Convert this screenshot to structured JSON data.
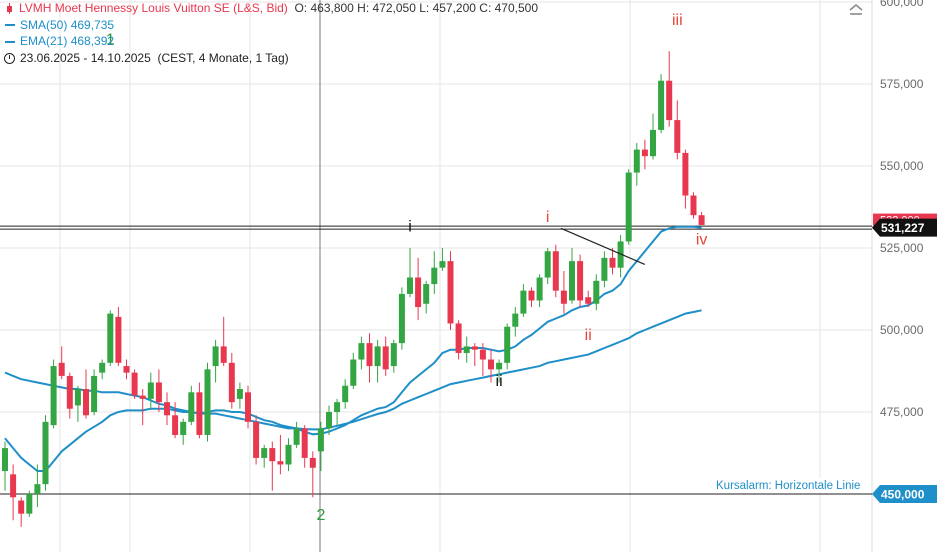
{
  "legend": {
    "title": "LVMH Moet Hennessy Louis Vuitton SE (L&S, Bid)",
    "ohlc": "O: 463,800  H: 472,050  L: 457,200  C: 470,500",
    "sma_label": "SMA(50)",
    "sma_value": "469,735",
    "ema_label": "EMA(21)",
    "ema_value": "468,392",
    "period": "23.06.2025 - 14.10.2025",
    "period_detail": "(CEST, 4 Monate, 1 Tag)"
  },
  "price_tags": {
    "current": "531,227",
    "hidden_behind": "533,000",
    "alarm": "450,000"
  },
  "alarm_label": "Kursalarm: Horizontale Linie",
  "colors": {
    "up": "#33a542",
    "down": "#e8384f",
    "ma": "#1e8fc8",
    "wave_green": "#2e9a3a",
    "wave_red": "#e5473a",
    "wave_black": "#111111",
    "axis_text": "#6b6b6b"
  },
  "icons": {
    "collapse": "chevron-up-icon"
  },
  "chart_data": {
    "type": "candlestick",
    "title": "LVMH Moet Hennessy Louis Vuitton SE (L&S, Bid)",
    "x_range": [
      "23.06.2025",
      "14.10.2025"
    ],
    "y_ticks": [
      450000,
      475000,
      500000,
      525000,
      550000,
      575000,
      600000
    ],
    "y_tick_labels": [
      "450,000",
      "475,000",
      "500,000",
      "525,000",
      "550,000",
      "575,000",
      "600,000"
    ],
    "ylim": [
      437000,
      600000
    ],
    "grid": true,
    "candles": [
      {
        "o": 457,
        "h": 466,
        "l": 451,
        "c": 464
      },
      {
        "o": 456,
        "h": 459,
        "l": 442,
        "c": 449
      },
      {
        "o": 448,
        "h": 449,
        "l": 440,
        "c": 444
      },
      {
        "o": 444,
        "h": 451,
        "l": 443,
        "c": 450
      },
      {
        "o": 450,
        "h": 459,
        "l": 446,
        "c": 453
      },
      {
        "o": 453,
        "h": 474,
        "l": 451,
        "c": 472
      },
      {
        "o": 471,
        "h": 491,
        "l": 470,
        "c": 489
      },
      {
        "o": 490,
        "h": 495,
        "l": 485,
        "c": 486
      },
      {
        "o": 486,
        "h": 487,
        "l": 473,
        "c": 476
      },
      {
        "o": 477,
        "h": 483,
        "l": 472,
        "c": 482
      },
      {
        "o": 482,
        "h": 488,
        "l": 473,
        "c": 474
      },
      {
        "o": 475,
        "h": 488,
        "l": 474,
        "c": 486
      },
      {
        "o": 487,
        "h": 491,
        "l": 485,
        "c": 490
      },
      {
        "o": 490,
        "h": 506,
        "l": 489,
        "c": 505
      },
      {
        "o": 504,
        "h": 507,
        "l": 489,
        "c": 490
      },
      {
        "o": 489,
        "h": 491,
        "l": 485,
        "c": 487
      },
      {
        "o": 487,
        "h": 488,
        "l": 479,
        "c": 480
      },
      {
        "o": 480,
        "h": 482,
        "l": 471,
        "c": 479
      },
      {
        "o": 479,
        "h": 487,
        "l": 476,
        "c": 484
      },
      {
        "o": 484,
        "h": 488,
        "l": 475,
        "c": 478
      },
      {
        "o": 478,
        "h": 481,
        "l": 471,
        "c": 474
      },
      {
        "o": 474,
        "h": 478,
        "l": 467,
        "c": 468
      },
      {
        "o": 468,
        "h": 473,
        "l": 465,
        "c": 472
      },
      {
        "o": 472,
        "h": 483,
        "l": 471,
        "c": 481
      },
      {
        "o": 481,
        "h": 484,
        "l": 467,
        "c": 468
      },
      {
        "o": 468,
        "h": 490,
        "l": 466,
        "c": 488
      },
      {
        "o": 489,
        "h": 497,
        "l": 484,
        "c": 495
      },
      {
        "o": 495,
        "h": 504,
        "l": 489,
        "c": 490
      },
      {
        "o": 490,
        "h": 493,
        "l": 476,
        "c": 478
      },
      {
        "o": 479,
        "h": 484,
        "l": 476,
        "c": 482
      },
      {
        "o": 481,
        "h": 483,
        "l": 470,
        "c": 472
      },
      {
        "o": 472,
        "h": 474,
        "l": 459,
        "c": 461
      },
      {
        "o": 461,
        "h": 465,
        "l": 458,
        "c": 464
      },
      {
        "o": 464,
        "h": 466,
        "l": 451,
        "c": 460
      },
      {
        "o": 460,
        "h": 468,
        "l": 456,
        "c": 459
      },
      {
        "o": 459,
        "h": 467,
        "l": 457,
        "c": 465
      },
      {
        "o": 465,
        "h": 472,
        "l": 464,
        "c": 470
      },
      {
        "o": 470,
        "h": 471,
        "l": 458,
        "c": 461
      },
      {
        "o": 461,
        "h": 463,
        "l": 449,
        "c": 458
      },
      {
        "o": 463,
        "h": 472,
        "l": 457,
        "c": 470
      },
      {
        "o": 470,
        "h": 477,
        "l": 468,
        "c": 475
      },
      {
        "o": 475,
        "h": 479,
        "l": 471,
        "c": 478
      },
      {
        "o": 478,
        "h": 485,
        "l": 476,
        "c": 483
      },
      {
        "o": 483,
        "h": 493,
        "l": 482,
        "c": 491
      },
      {
        "o": 491,
        "h": 498,
        "l": 488,
        "c": 496
      },
      {
        "o": 496,
        "h": 499,
        "l": 484,
        "c": 489
      },
      {
        "o": 489,
        "h": 497,
        "l": 484,
        "c": 495
      },
      {
        "o": 495,
        "h": 498,
        "l": 486,
        "c": 488
      },
      {
        "o": 489,
        "h": 497,
        "l": 487,
        "c": 496
      },
      {
        "o": 496,
        "h": 513,
        "l": 494,
        "c": 511
      },
      {
        "o": 511,
        "h": 525,
        "l": 510,
        "c": 516
      },
      {
        "o": 516,
        "h": 522,
        "l": 503,
        "c": 507
      },
      {
        "o": 508,
        "h": 515,
        "l": 505,
        "c": 514
      },
      {
        "o": 514,
        "h": 524,
        "l": 511,
        "c": 519
      },
      {
        "o": 519,
        "h": 525,
        "l": 518,
        "c": 521
      },
      {
        "o": 521,
        "h": 524,
        "l": 500,
        "c": 502
      },
      {
        "o": 502,
        "h": 503,
        "l": 491,
        "c": 493
      },
      {
        "o": 493,
        "h": 498,
        "l": 490,
        "c": 495
      },
      {
        "o": 495,
        "h": 496,
        "l": 489,
        "c": 494
      },
      {
        "o": 494,
        "h": 496,
        "l": 486,
        "c": 491
      },
      {
        "o": 491,
        "h": 494,
        "l": 484,
        "c": 488
      },
      {
        "o": 488,
        "h": 491,
        "l": 484,
        "c": 490
      },
      {
        "o": 490,
        "h": 502,
        "l": 488,
        "c": 501
      },
      {
        "o": 501,
        "h": 507,
        "l": 498,
        "c": 505
      },
      {
        "o": 505,
        "h": 514,
        "l": 504,
        "c": 512
      },
      {
        "o": 512,
        "h": 513,
        "l": 507,
        "c": 509
      },
      {
        "o": 509,
        "h": 517,
        "l": 507,
        "c": 516
      },
      {
        "o": 516,
        "h": 525,
        "l": 514,
        "c": 524
      },
      {
        "o": 524,
        "h": 526,
        "l": 510,
        "c": 512
      },
      {
        "o": 512,
        "h": 518,
        "l": 505,
        "c": 508
      },
      {
        "o": 509,
        "h": 525,
        "l": 508,
        "c": 521
      },
      {
        "o": 521,
        "h": 523,
        "l": 507,
        "c": 509
      },
      {
        "o": 510,
        "h": 512,
        "l": 507,
        "c": 508
      },
      {
        "o": 508,
        "h": 517,
        "l": 506,
        "c": 515
      },
      {
        "o": 515,
        "h": 524,
        "l": 513,
        "c": 522
      },
      {
        "o": 522,
        "h": 525,
        "l": 517,
        "c": 519
      },
      {
        "o": 519,
        "h": 529,
        "l": 516,
        "c": 527
      },
      {
        "o": 527,
        "h": 549,
        "l": 526,
        "c": 548
      },
      {
        "o": 548,
        "h": 557,
        "l": 544,
        "c": 555
      },
      {
        "o": 555,
        "h": 558,
        "l": 549,
        "c": 553
      },
      {
        "o": 553,
        "h": 566,
        "l": 552,
        "c": 561
      },
      {
        "o": 561,
        "h": 578,
        "l": 560,
        "c": 576
      },
      {
        "o": 576,
        "h": 585,
        "l": 562,
        "c": 564
      },
      {
        "o": 564,
        "h": 570,
        "l": 552,
        "c": 554
      },
      {
        "o": 554,
        "h": 555,
        "l": 537,
        "c": 541
      },
      {
        "o": 541,
        "h": 542,
        "l": 534,
        "c": 535
      },
      {
        "o": 535,
        "h": 536,
        "l": 532,
        "c": 532
      }
    ],
    "series": [
      {
        "name": "SMA(50)",
        "values": [
          487,
          486,
          485,
          484.5,
          484,
          483.5,
          483,
          482.5,
          482,
          482,
          481.5,
          481.5,
          481,
          481,
          481,
          480.5,
          480,
          479.5,
          478.5,
          477.5,
          477,
          476,
          475.5,
          475,
          474.5,
          474.5,
          474.5,
          474,
          473.5,
          473,
          472.5,
          472,
          471.5,
          471,
          470.5,
          470,
          470,
          469.8,
          469.7,
          469.7,
          470.2,
          470.8,
          471.4,
          472,
          472.8,
          473.6,
          474.4,
          475,
          476,
          477.5,
          478.5,
          479.5,
          480.5,
          481.5,
          482.5,
          483.5,
          484,
          484.5,
          485,
          485.5,
          486,
          486.5,
          487,
          487.5,
          488,
          488.5,
          489,
          490,
          490.5,
          491,
          491.5,
          492,
          492.5,
          493.5,
          494.5,
          495.5,
          496.5,
          497.5,
          499,
          500,
          501,
          502,
          503,
          504,
          505,
          505.5,
          506
        ]
      },
      {
        "name": "EMA(21)",
        "values": [
          467,
          464,
          461,
          459,
          457,
          457,
          460,
          463,
          465,
          467,
          469,
          470.5,
          472,
          474,
          475,
          475.5,
          475.5,
          475.5,
          476,
          476,
          476,
          475.5,
          475,
          475,
          474.5,
          475,
          475.5,
          475.5,
          475,
          475,
          474.5,
          473.5,
          472.5,
          472,
          471,
          470.5,
          470,
          469,
          468.2,
          468.4,
          469,
          470,
          471,
          472.5,
          474,
          475,
          476,
          476.5,
          478,
          481,
          484,
          486,
          488,
          490,
          493,
          494,
          494,
          494.5,
          494.5,
          494.5,
          494,
          493.5,
          494,
          495,
          497,
          498.5,
          500.5,
          502.5,
          503.5,
          504.5,
          506,
          507,
          507.5,
          509,
          511,
          512,
          514,
          518,
          521,
          524,
          527,
          530,
          531,
          531.5,
          531.5,
          531.5,
          531.2
        ]
      }
    ],
    "horizontal_lines": [
      531227,
      450000
    ],
    "annotations": [
      {
        "text": "1",
        "color": "green",
        "index": 13,
        "y": 587
      },
      {
        "text": "2",
        "color": "green",
        "index": 39,
        "y": 442
      },
      {
        "text": "i",
        "color": "black",
        "index": 50,
        "y": 530
      },
      {
        "text": "ii",
        "color": "black",
        "index": 61,
        "y": 483
      },
      {
        "text": "i",
        "color": "red",
        "index": 67,
        "y": 533
      },
      {
        "text": "ii",
        "color": "red",
        "index": 72,
        "y": 497
      },
      {
        "text": "iii",
        "color": "red",
        "index": 83,
        "y": 593
      },
      {
        "text": "iv",
        "color": "red",
        "index": 86,
        "y": 526
      }
    ],
    "trend_line": {
      "from": {
        "index": 69,
        "value": 531
      },
      "to": {
        "index": 78,
        "value": 520
      }
    }
  }
}
